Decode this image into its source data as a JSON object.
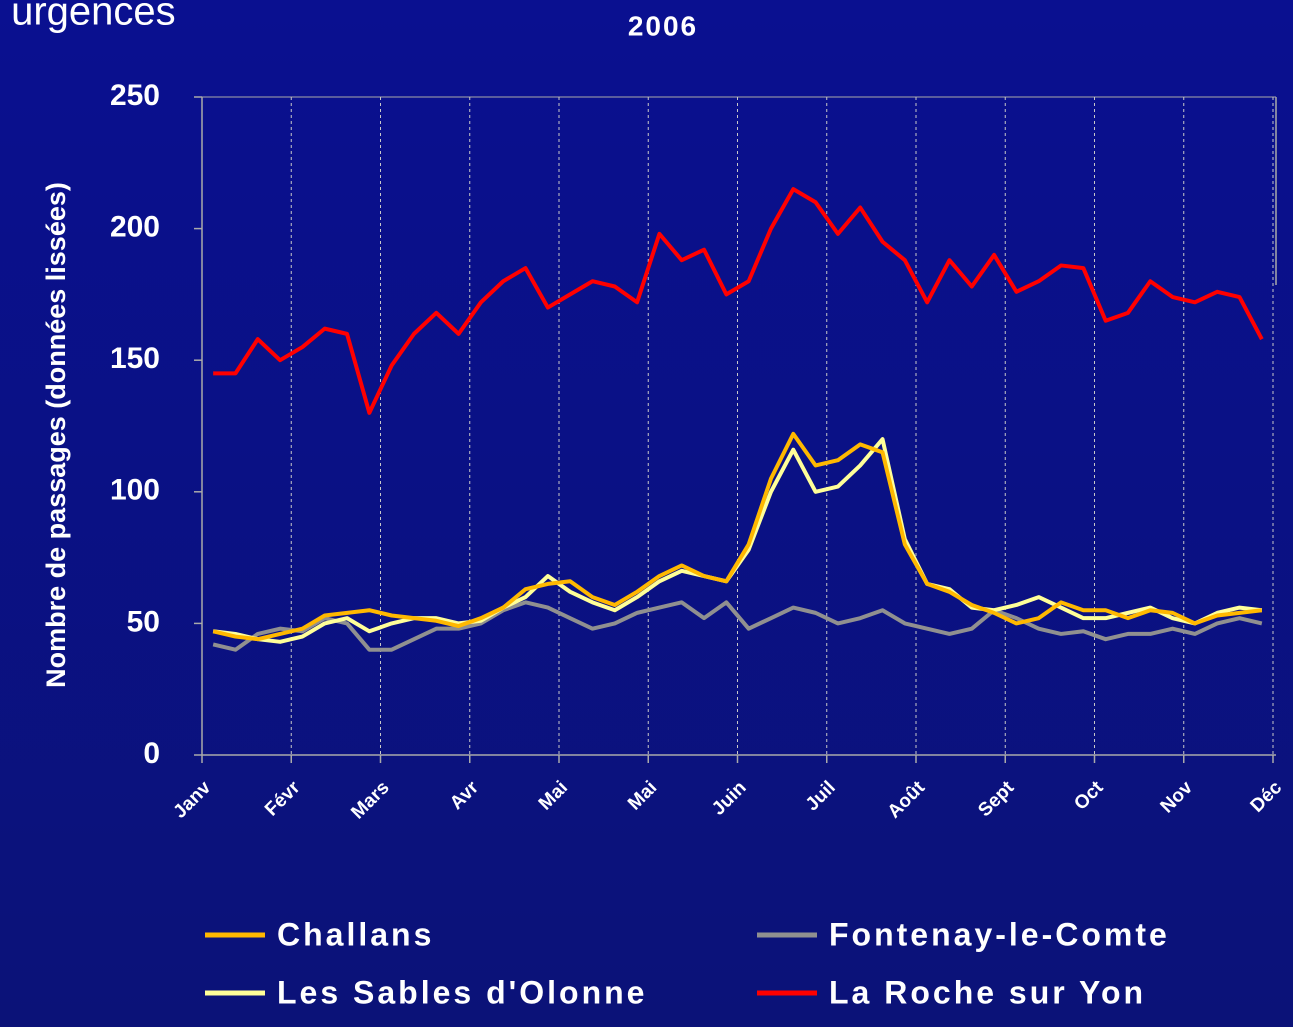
{
  "header": "x urgences",
  "chart_data": {
    "type": "line",
    "title": "2006",
    "ylabel": "Nombre de passages (données lissées)",
    "xlim": [
      0,
      12
    ],
    "xticks": [
      {
        "value": 0,
        "label": "Janv"
      },
      {
        "value": 1,
        "label": "Févr"
      },
      {
        "value": 2,
        "label": "Mars"
      },
      {
        "value": 3,
        "label": "Avr"
      },
      {
        "value": 4,
        "label": "Mai"
      },
      {
        "value": 5,
        "label": "Mai"
      },
      {
        "value": 6,
        "label": "Juin"
      },
      {
        "value": 7,
        "label": "Juil"
      },
      {
        "value": 8,
        "label": "Août"
      },
      {
        "value": 9,
        "label": "Sept"
      },
      {
        "value": 10,
        "label": "Oct"
      },
      {
        "value": 11,
        "label": "Nov"
      },
      {
        "value": 12,
        "label": "Déc"
      }
    ],
    "ylim": [
      0,
      250
    ],
    "yticks": [
      0,
      50,
      100,
      150,
      200,
      250
    ],
    "grid": true,
    "x": [
      0.125,
      0.375,
      0.625,
      0.875,
      1.125,
      1.375,
      1.625,
      1.875,
      2.125,
      2.375,
      2.625,
      2.875,
      3.125,
      3.375,
      3.625,
      3.875,
      4.125,
      4.375,
      4.625,
      4.875,
      5.125,
      5.375,
      5.625,
      5.875,
      6.125,
      6.375,
      6.625,
      6.875,
      7.125,
      7.375,
      7.625,
      7.875,
      8.125,
      8.375,
      8.625,
      8.875,
      9.125,
      9.375,
      9.625,
      9.875,
      10.125,
      10.375,
      10.625,
      10.875,
      11.125,
      11.375,
      11.625,
      11.875
    ],
    "series": [
      {
        "name": "Challans",
        "color": "#ffb800",
        "values": [
          47,
          45,
          44,
          46,
          48,
          53,
          54,
          55,
          53,
          52,
          51,
          49,
          52,
          56,
          63,
          65,
          66,
          60,
          57,
          62,
          68,
          72,
          68,
          66,
          80,
          105,
          122,
          110,
          112,
          118,
          115,
          80,
          65,
          62,
          57,
          54,
          50,
          52,
          58,
          55,
          55,
          52,
          55,
          54,
          50,
          53,
          54,
          55
        ]
      },
      {
        "name": "Fontenay-le-Comte",
        "color": "#909090",
        "values": [
          42,
          40,
          46,
          48,
          47,
          52,
          50,
          40,
          40,
          44,
          48,
          48,
          50,
          55,
          58,
          56,
          52,
          48,
          50,
          54,
          56,
          58,
          52,
          58,
          48,
          52,
          56,
          54,
          50,
          52,
          55,
          50,
          48,
          46,
          48,
          55,
          52,
          48,
          46,
          47,
          44,
          46,
          46,
          48,
          46,
          50,
          52,
          50
        ]
      },
      {
        "name": "Les Sables d'Olonne",
        "color": "#ffff99",
        "values": [
          47,
          46,
          44,
          43,
          45,
          50,
          52,
          47,
          50,
          52,
          52,
          50,
          51,
          56,
          60,
          68,
          62,
          58,
          55,
          60,
          66,
          70,
          68,
          66,
          78,
          100,
          116,
          100,
          102,
          110,
          120,
          82,
          65,
          63,
          56,
          55,
          57,
          60,
          56,
          52,
          52,
          54,
          56,
          52,
          50,
          54,
          56,
          55
        ]
      },
      {
        "name": "La Roche sur Yon",
        "color": "#ff0000",
        "values": [
          145,
          145,
          158,
          150,
          155,
          162,
          160,
          130,
          148,
          160,
          168,
          160,
          172,
          180,
          185,
          170,
          175,
          180,
          178,
          172,
          198,
          188,
          192,
          175,
          180,
          200,
          215,
          210,
          198,
          208,
          195,
          188,
          172,
          188,
          178,
          190,
          176,
          180,
          186,
          185,
          165,
          168,
          180,
          174,
          172,
          176,
          174,
          158
        ]
      }
    ]
  }
}
